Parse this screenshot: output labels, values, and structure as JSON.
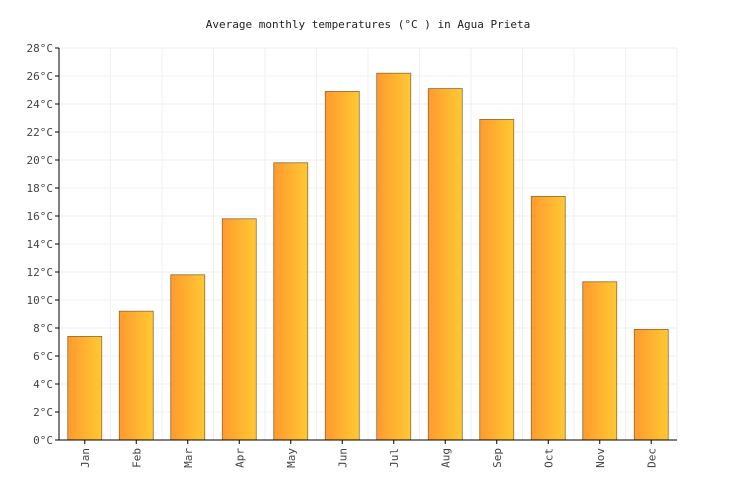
{
  "chart_data": {
    "type": "bar",
    "title": "Average monthly temperatures (°C ) in Agua Prieta",
    "xlabel": "",
    "ylabel": "",
    "categories": [
      "Jan",
      "Feb",
      "Mar",
      "Apr",
      "May",
      "Jun",
      "Jul",
      "Aug",
      "Sep",
      "Oct",
      "Nov",
      "Dec"
    ],
    "values": [
      7.4,
      9.2,
      11.8,
      15.8,
      19.8,
      24.9,
      26.2,
      25.1,
      22.9,
      17.4,
      11.3,
      7.9
    ],
    "ylim": [
      0,
      28
    ],
    "yticks": [
      0,
      2,
      4,
      6,
      8,
      10,
      12,
      14,
      16,
      18,
      20,
      22,
      24,
      26,
      28
    ],
    "ytick_suffix": "°C",
    "grid": true,
    "legend": "none",
    "colors": {
      "bar_left": "#ff9a2e",
      "bar_right": "#ffc933",
      "bar_stroke": "#8a6a3a",
      "grid": "#efefef",
      "axis": "#000000"
    }
  }
}
